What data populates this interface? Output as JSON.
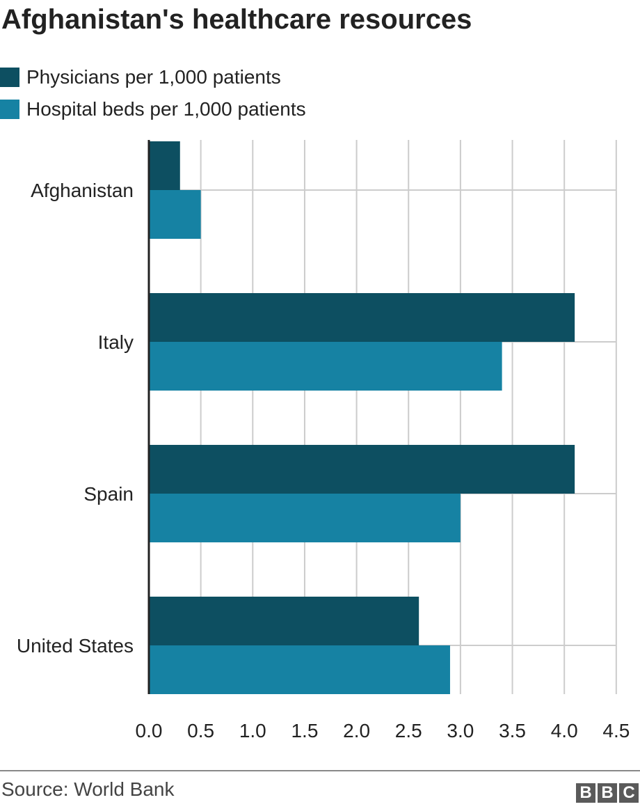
{
  "title": "Afghanistan's healthcare resources",
  "legend": [
    {
      "label": "Physicians per 1,000 patients",
      "color": "#0d4f61"
    },
    {
      "label": "Hospital beds per 1,000 patients",
      "color": "#1682a3"
    }
  ],
  "source": "Source: World Bank",
  "logo": [
    "B",
    "B",
    "C"
  ],
  "chart_data": {
    "type": "bar",
    "orientation": "horizontal",
    "categories": [
      "Afghanistan",
      "Italy",
      "Spain",
      "United States"
    ],
    "series": [
      {
        "name": "Physicians per 1,000 patients",
        "color": "#0d4f61",
        "values": [
          0.3,
          4.1,
          4.1,
          2.6
        ]
      },
      {
        "name": "Hospital beds per 1,000 patients",
        "color": "#1682a3",
        "values": [
          0.5,
          3.4,
          3.0,
          2.9
        ]
      }
    ],
    "xlim": [
      0,
      4.5
    ],
    "xticks": [
      "0.0",
      "0.5",
      "1.0",
      "1.5",
      "2.0",
      "2.5",
      "3.0",
      "3.5",
      "4.0",
      "4.5"
    ],
    "grid": true,
    "legend_position": "top-left"
  }
}
